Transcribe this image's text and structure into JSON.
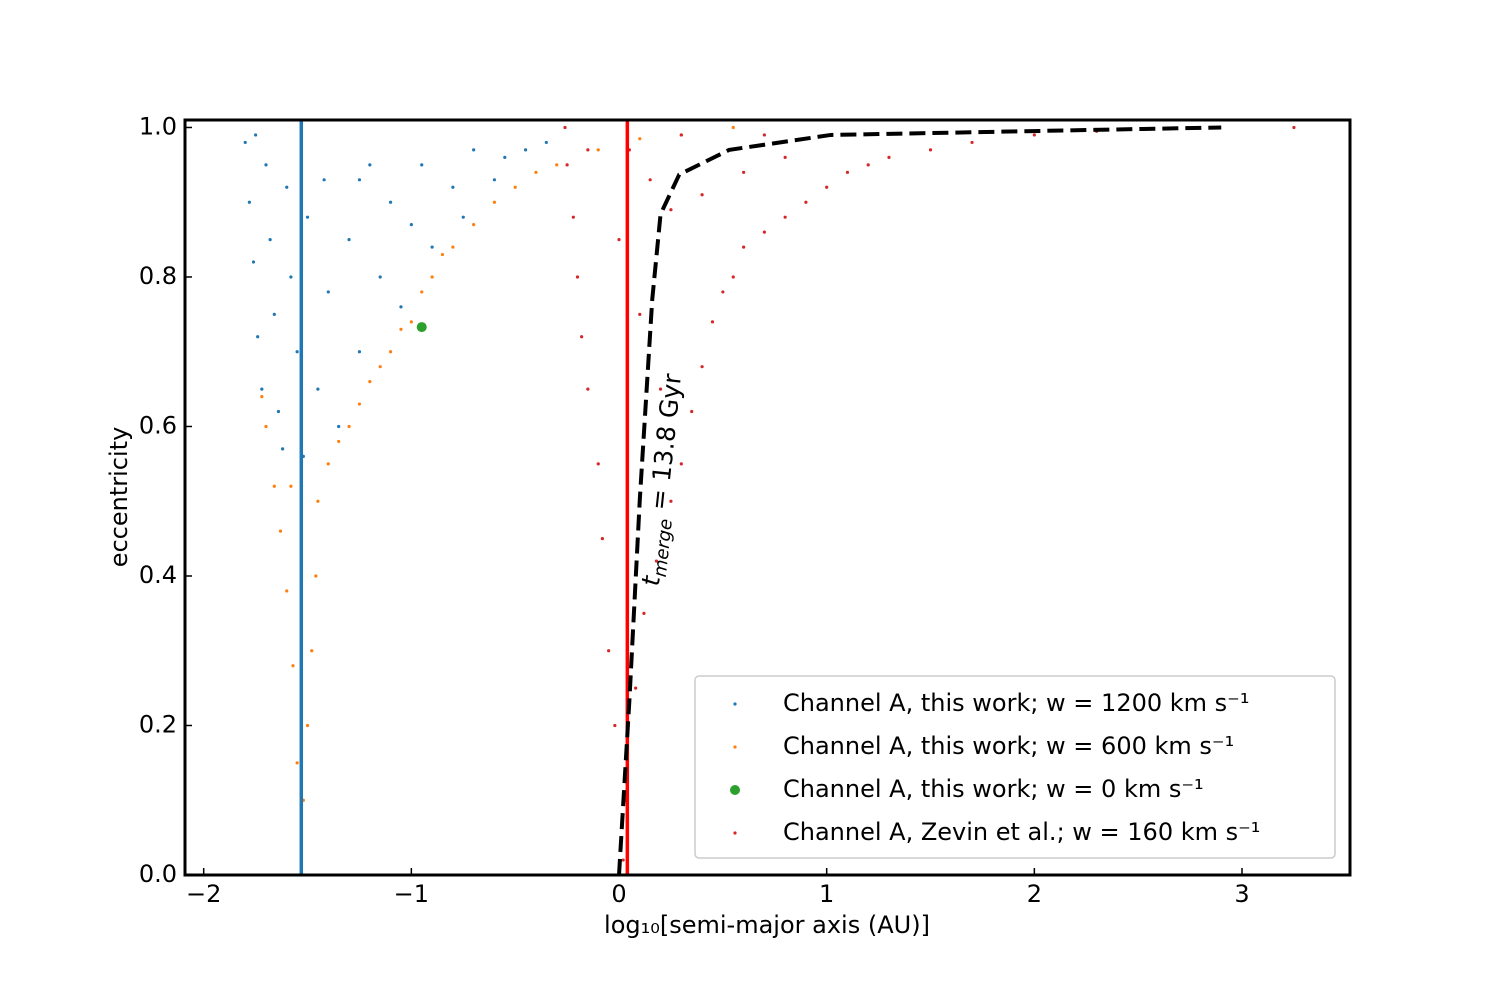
{
  "chart_data": {
    "type": "scatter",
    "xlabel": "log₁₀[semi-major axis (AU)]",
    "ylabel": "eccentricity",
    "xlim": [
      -2.09,
      3.52
    ],
    "ylim": [
      0,
      1.01
    ],
    "xticks": [
      {
        "value": -2,
        "label": "−2"
      },
      {
        "value": -1,
        "label": "−1"
      },
      0,
      1,
      2,
      3
    ],
    "yticks": [
      {
        "value": 0,
        "label": "0.0"
      },
      0.2,
      0.4,
      0.6,
      0.8,
      {
        "value": 1,
        "label": "1.0"
      }
    ],
    "tick_direction": "in",
    "legend": "lower right",
    "series": [
      {
        "name": "Channel A, this work; w = 1200 km s⁻¹",
        "color": "#1f77b4",
        "marker_size": 1.6,
        "x": [
          -1.8,
          -1.78,
          -1.76,
          -1.74,
          -1.72,
          -1.7,
          -1.68,
          -1.66,
          -1.64,
          -1.62,
          -1.6,
          -1.58,
          -1.55,
          -1.52,
          -1.5,
          -1.45,
          -1.42,
          -1.4,
          -1.35,
          -1.3,
          -1.25,
          -1.2,
          -1.15,
          -1.1,
          -1.05,
          -1.0,
          -0.95,
          -0.9,
          -0.8,
          -0.75,
          -0.7,
          -0.6,
          -0.55,
          -0.45,
          -0.35,
          -1.75,
          -1.25
        ],
        "y": [
          0.98,
          0.9,
          0.82,
          0.72,
          0.65,
          0.95,
          0.85,
          0.75,
          0.62,
          0.57,
          0.92,
          0.8,
          0.7,
          0.56,
          0.88,
          0.65,
          0.93,
          0.78,
          0.6,
          0.85,
          0.7,
          0.95,
          0.8,
          0.9,
          0.76,
          0.87,
          0.95,
          0.84,
          0.92,
          0.88,
          0.97,
          0.93,
          0.96,
          0.97,
          0.98,
          0.99,
          0.93
        ]
      },
      {
        "name": "Channel A, this work; w = 600 km s⁻¹",
        "color": "#ff7f0e",
        "marker_size": 1.6,
        "x": [
          -1.53,
          -1.52,
          -1.55,
          -1.5,
          -1.57,
          -1.48,
          -1.6,
          -1.46,
          -1.63,
          -1.45,
          -1.66,
          -1.7,
          -1.72,
          -1.58,
          -1.4,
          -1.35,
          -1.3,
          -1.25,
          -1.2,
          -1.15,
          -1.1,
          -1.05,
          -1.0,
          -0.95,
          -0.9,
          -0.85,
          -0.8,
          -0.7,
          -0.6,
          -0.5,
          -0.4,
          -0.3,
          -0.1,
          0.1,
          0.3,
          0.55
        ],
        "y": [
          0.04,
          0.1,
          0.15,
          0.2,
          0.28,
          0.3,
          0.38,
          0.4,
          0.46,
          0.5,
          0.52,
          0.6,
          0.64,
          0.52,
          0.55,
          0.58,
          0.6,
          0.63,
          0.66,
          0.68,
          0.7,
          0.73,
          0.74,
          0.78,
          0.8,
          0.83,
          0.84,
          0.87,
          0.9,
          0.92,
          0.94,
          0.95,
          0.97,
          0.985,
          0.99,
          1.0
        ]
      },
      {
        "name": "Channel A, this work; w = 0 km s⁻¹",
        "color": "#2ca02c",
        "marker_size": 5,
        "x": [
          -0.95
        ],
        "y": [
          0.733
        ]
      },
      {
        "name": "Channel A, Zevin et al.; w = 160 km s⁻¹",
        "color": "#d62728",
        "marker_size": 1.6,
        "x": [
          0.02,
          0.03,
          -0.02,
          0.08,
          -0.05,
          0.12,
          -0.08,
          0.18,
          -0.1,
          0.25,
          -0.15,
          0.3,
          -0.18,
          0.35,
          -0.2,
          0.4,
          -0.22,
          0.45,
          -0.25,
          0.5,
          -0.26,
          0.55,
          0.0,
          0.1,
          0.2,
          0.6,
          0.7,
          0.8,
          0.9,
          1.0,
          1.1,
          1.2,
          1.3,
          1.5,
          1.7,
          2.0,
          2.3,
          0.25,
          0.4,
          0.6,
          0.8,
          0.15,
          -0.15,
          0.05,
          3.25,
          0.7,
          0.3
        ],
        "y": [
          0.02,
          0.1,
          0.2,
          0.25,
          0.3,
          0.35,
          0.45,
          0.42,
          0.55,
          0.5,
          0.65,
          0.55,
          0.72,
          0.62,
          0.8,
          0.68,
          0.88,
          0.74,
          0.95,
          0.78,
          1.0,
          0.8,
          0.85,
          0.75,
          0.65,
          0.84,
          0.86,
          0.88,
          0.9,
          0.92,
          0.94,
          0.95,
          0.96,
          0.97,
          0.98,
          0.99,
          0.995,
          0.89,
          0.91,
          0.94,
          0.96,
          0.93,
          0.97,
          0.97,
          1.0,
          0.99,
          0.99
        ]
      }
    ],
    "vlines": [
      {
        "x": -1.53,
        "color": "#1f77b4"
      },
      {
        "x": 0.04,
        "color": "#ff0000"
      }
    ],
    "curve": {
      "color": "#000000",
      "x": [
        0.0,
        0.05,
        0.1,
        0.16,
        0.2,
        0.29,
        0.53,
        1.02,
        2.9
      ],
      "y": [
        0.0,
        0.234,
        0.502,
        0.77,
        0.884,
        0.937,
        0.97,
        0.99,
        1.0
      ]
    },
    "annotation": {
      "symbol": "t",
      "subscript": "merge",
      "text": " = 13.8 Gyr"
    }
  }
}
